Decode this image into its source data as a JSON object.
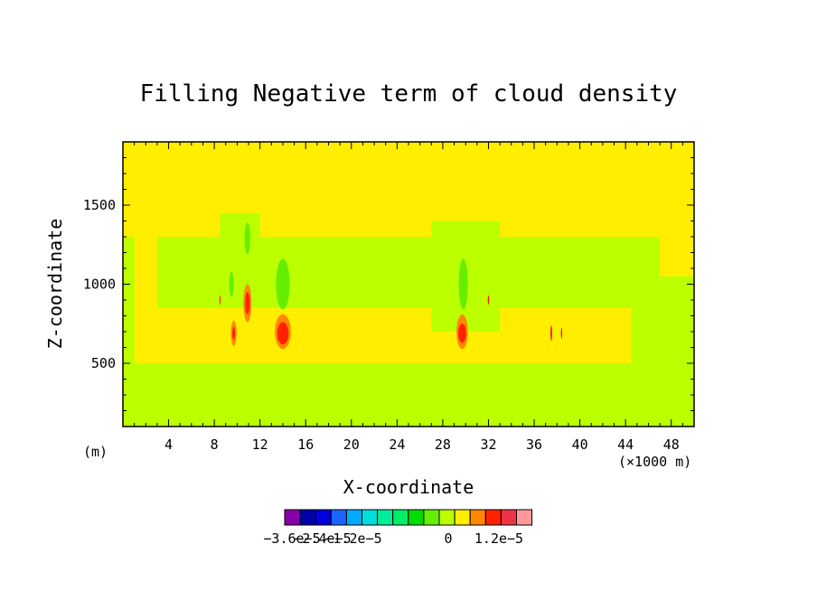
{
  "chart_data": {
    "type": "heatmap",
    "title": "Filling Negative term of cloud density",
    "xlabel": "X-coordinate",
    "ylabel": "Z-coordinate",
    "x_unit_left": "(m)",
    "x_unit_right": "(×1000 m)",
    "xlim": [
      0,
      50
    ],
    "ylim": [
      100,
      1900
    ],
    "x_ticks": [
      "4",
      "8",
      "12",
      "16",
      "20",
      "24",
      "28",
      "32",
      "36",
      "40",
      "44",
      "48"
    ],
    "x_tick_values": [
      4,
      8,
      12,
      16,
      20,
      24,
      28,
      32,
      36,
      40,
      44,
      48
    ],
    "y_ticks": [
      "500",
      "1000",
      "1500"
    ],
    "y_tick_values": [
      500,
      1000,
      1500
    ],
    "background_level_color": "#ffee00",
    "regions": [
      {
        "level": 0,
        "shape": "band",
        "z": [
          700,
          900
        ],
        "x": [
          3,
          47
        ]
      },
      {
        "level": -1,
        "shape": "band",
        "z": [
          850,
          1300
        ],
        "x": [
          3,
          47
        ]
      },
      {
        "level": -1,
        "shape": "band",
        "z": [
          100,
          500
        ],
        "x": [
          0,
          50
        ]
      },
      {
        "level": -1,
        "shape": "band",
        "z": [
          300,
          1300
        ],
        "x": [
          0,
          1
        ]
      },
      {
        "level": -1,
        "shape": "band",
        "z": [
          900,
          1450
        ],
        "x": [
          8.5,
          12
        ]
      },
      {
        "level": -1,
        "shape": "band",
        "z": [
          700,
          1400
        ],
        "x": [
          27,
          33
        ]
      },
      {
        "level": -1,
        "shape": "band",
        "z": [
          100,
          1050
        ],
        "x": [
          44.5,
          50
        ]
      },
      {
        "level": -2,
        "shape": "ellipse",
        "x": 14,
        "z": 1000,
        "rx": 0.6,
        "rz": 160
      },
      {
        "level": -2,
        "shape": "ellipse",
        "x": 29.8,
        "z": 1000,
        "rx": 0.4,
        "rz": 160
      },
      {
        "level": -2,
        "shape": "ellipse",
        "x": 10.9,
        "z": 1290,
        "rx": 0.25,
        "rz": 100
      },
      {
        "level": -2,
        "shape": "ellipse",
        "x": 9.5,
        "z": 1000,
        "rx": 0.2,
        "rz": 80
      },
      {
        "level": 1,
        "shape": "ellipse",
        "x": 14,
        "z": 700,
        "rx": 0.7,
        "rz": 110
      },
      {
        "level": 2,
        "shape": "ellipse",
        "x": 14,
        "z": 690,
        "rx": 0.5,
        "rz": 70
      },
      {
        "level": 1,
        "shape": "ellipse",
        "x": 29.7,
        "z": 700,
        "rx": 0.5,
        "rz": 110
      },
      {
        "level": 2,
        "shape": "ellipse",
        "x": 29.7,
        "z": 690,
        "rx": 0.35,
        "rz": 60
      },
      {
        "level": 1,
        "shape": "ellipse",
        "x": 10.9,
        "z": 880,
        "rx": 0.35,
        "rz": 120
      },
      {
        "level": 2,
        "shape": "ellipse",
        "x": 10.9,
        "z": 880,
        "rx": 0.2,
        "rz": 70
      },
      {
        "level": 1,
        "shape": "ellipse",
        "x": 9.7,
        "z": 690,
        "rx": 0.25,
        "rz": 80
      },
      {
        "level": 2,
        "shape": "ellipse",
        "x": 9.7,
        "z": 690,
        "rx": 0.12,
        "rz": 40
      },
      {
        "level": 2,
        "shape": "ellipse",
        "x": 37.5,
        "z": 690,
        "rx": 0.08,
        "rz": 50
      },
      {
        "level": 2,
        "shape": "ellipse",
        "x": 38.4,
        "z": 690,
        "rx": 0.06,
        "rz": 35
      },
      {
        "level": 2,
        "shape": "ellipse",
        "x": 32,
        "z": 900,
        "rx": 0.06,
        "rz": 30
      },
      {
        "level": 2,
        "shape": "ellipse",
        "x": 8.5,
        "z": 900,
        "rx": 0.05,
        "rz": 30
      }
    ],
    "colorbar": {
      "colors": [
        "#8800aa",
        "#0000aa",
        "#0000dd",
        "#1a66ff",
        "#00aaff",
        "#00dddd",
        "#00ee99",
        "#00ee66",
        "#00dd00",
        "#66ee00",
        "#bbff00",
        "#ffee00",
        "#ff8800",
        "#ff2200",
        "#ee3344",
        "#ff9999"
      ],
      "tick_labels": [
        "−3.6e−5",
        "−2.4e−5",
        "−1.2e−5",
        "0",
        "1.2e−5"
      ]
    }
  }
}
